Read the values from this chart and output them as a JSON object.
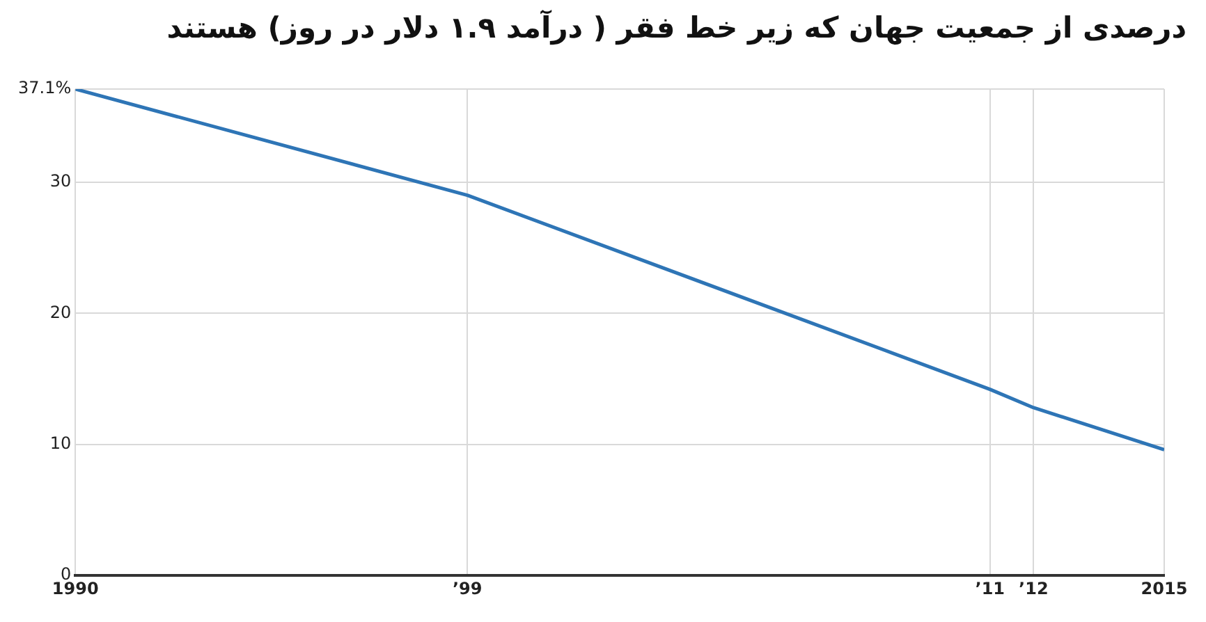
{
  "chart_data": {
    "type": "line",
    "title": "درصدی از جمعیت جهان که زیر خط فقر ( درآمد ۱.۹ دلار در روز) هستند",
    "x": [
      1990,
      1999,
      2011,
      2012,
      2015
    ],
    "series": [
      {
        "color": "#2e75b6",
        "values": [
          37.1,
          29.0,
          14.2,
          12.8,
          9.6
        ]
      }
    ],
    "xlim": [
      1990,
      2015
    ],
    "xticks": [
      1990,
      {
        "value": 1999,
        "label": "’99"
      },
      {
        "value": 2011,
        "label": "’11"
      },
      {
        "value": 2012,
        "label": "’12"
      },
      2015
    ],
    "ylim": [
      0,
      37.1
    ],
    "yticks": [
      0,
      10,
      20,
      30,
      {
        "value": 37.1,
        "label": "37.1%"
      }
    ],
    "grid": true,
    "legend": false,
    "marker": "none",
    "line_style": "solid"
  }
}
